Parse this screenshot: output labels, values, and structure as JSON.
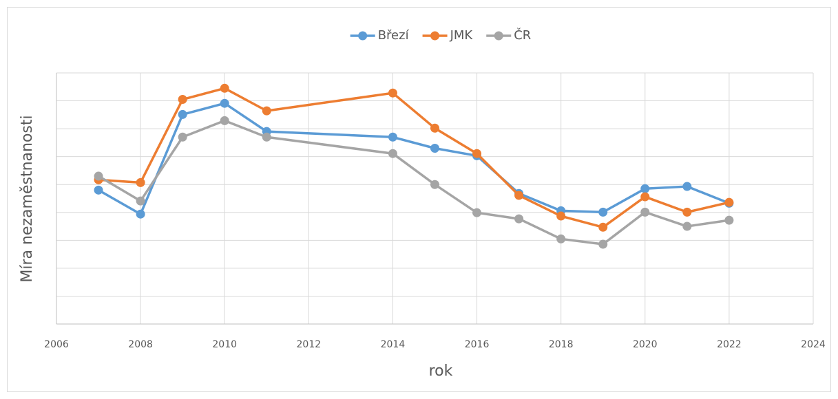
{
  "chart_data": {
    "type": "line",
    "y_label": "Míra nezaměstnanosti",
    "x_label": "rok",
    "x": [
      2007,
      2008,
      2009,
      2010,
      2011,
      2014,
      2015,
      2016,
      2017,
      2018,
      2019,
      2020,
      2021,
      2022
    ],
    "series": [
      {
        "name": "Březí",
        "color": "#5b9bd5",
        "values": [
          4.8,
          3.94,
          7.51,
          7.91,
          6.9,
          6.7,
          6.3,
          6.03,
          4.68,
          4.06,
          4.01,
          4.85,
          4.93,
          4.33
        ]
      },
      {
        "name": "JMK",
        "color": "#ed7d31",
        "values": [
          5.17,
          5.07,
          8.05,
          8.45,
          7.64,
          8.28,
          7.02,
          6.11,
          4.61,
          3.87,
          3.47,
          4.56,
          4.01,
          4.36
        ]
      },
      {
        "name": "ČR",
        "color": "#a5a5a5",
        "values": [
          5.3,
          4.41,
          6.7,
          7.29,
          6.7,
          6.11,
          5.0,
          3.99,
          3.77,
          3.05,
          2.86,
          4.01,
          3.5,
          3.72
        ]
      }
    ],
    "xlim": [
      2006,
      2024
    ],
    "xticks": [
      2006,
      2008,
      2010,
      2012,
      2014,
      2016,
      2018,
      2020,
      2022,
      2024
    ],
    "ylim": [
      0,
      9
    ],
    "yticks": [
      0,
      1,
      2,
      3,
      4,
      5,
      6,
      7,
      8,
      9
    ],
    "grid": true,
    "legend": "top"
  }
}
